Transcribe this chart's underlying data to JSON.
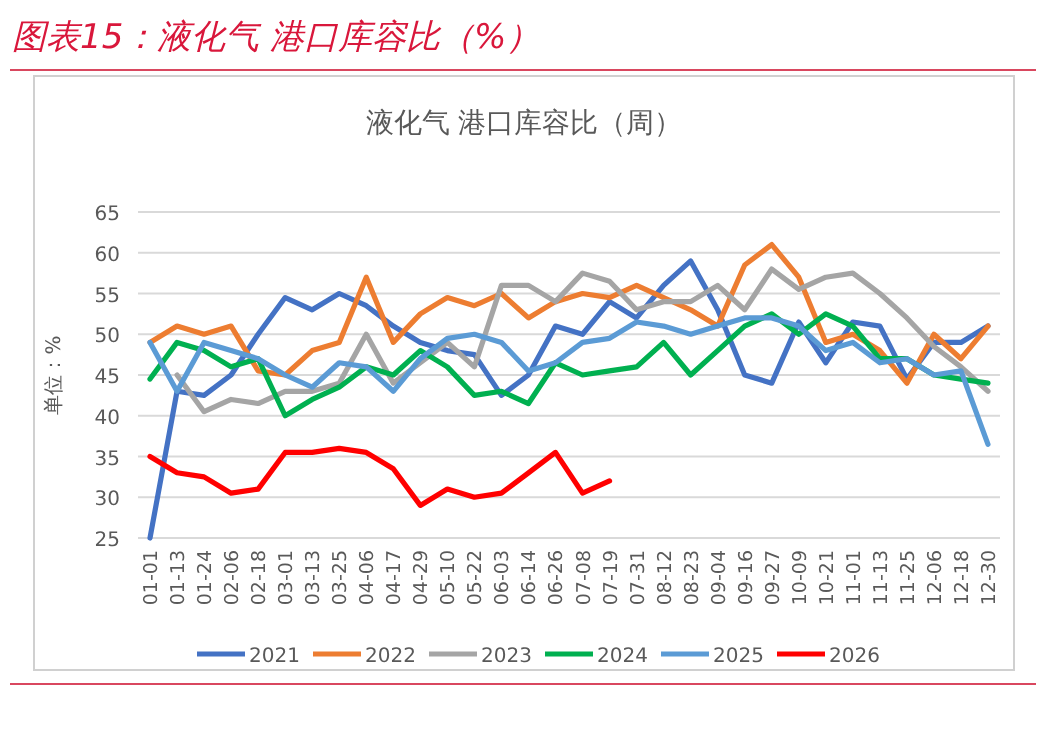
{
  "chart_data": {
    "type": "line",
    "title": "图表15：液化气 港口库容比（%）",
    "subtitle": "液化气 港口库容比（周）",
    "ylabel": "单位：%",
    "categories": [
      "01-01",
      "01-13",
      "01-24",
      "02-06",
      "02-18",
      "03-01",
      "03-13",
      "03-25",
      "04-06",
      "04-17",
      "04-29",
      "05-10",
      "05-22",
      "06-03",
      "06-14",
      "06-26",
      "07-08",
      "07-19",
      "07-31",
      "08-12",
      "08-23",
      "09-04",
      "09-16",
      "09-27",
      "10-09",
      "10-21",
      "11-01",
      "11-13",
      "11-25",
      "12-06",
      "12-18",
      "12-30"
    ],
    "series": [
      {
        "name": "2021",
        "color": "#4472c4",
        "values": [
          25,
          43,
          42.5,
          45,
          50,
          54.5,
          53,
          55,
          53.5,
          51,
          49,
          48,
          47.5,
          42.5,
          45,
          51,
          50,
          54,
          52,
          56,
          59,
          53,
          45,
          44,
          51.5,
          46.5,
          51.5,
          51,
          44.5,
          49,
          49,
          51
        ]
      },
      {
        "name": "2022",
        "color": "#ed7d31",
        "values": [
          49,
          51,
          50,
          51,
          45.5,
          45,
          48,
          49,
          57,
          49,
          52.5,
          54.5,
          53.5,
          55,
          52,
          54,
          55,
          54.5,
          56,
          54.5,
          53,
          51,
          58.5,
          61,
          57,
          49,
          50,
          48,
          44,
          50,
          47,
          51
        ]
      },
      {
        "name": "2023",
        "color": "#a5a5a5",
        "values": [
          null,
          45,
          40.5,
          42,
          41.5,
          43,
          43,
          44,
          50,
          44,
          46.5,
          49,
          46,
          56,
          56,
          54,
          57.5,
          56.5,
          53,
          54,
          54,
          56,
          53,
          58,
          55.5,
          57,
          57.5,
          55,
          52,
          48.5,
          46,
          43
        ]
      },
      {
        "name": "2024",
        "color": "#00b050",
        "values": [
          44.5,
          49,
          48,
          46,
          47,
          40,
          42,
          43.5,
          46,
          45,
          48,
          46,
          42.5,
          43,
          41.5,
          46.5,
          45,
          45.5,
          46,
          49,
          45,
          48,
          51,
          52.5,
          50,
          52.5,
          51,
          47,
          47,
          45,
          44.5,
          44
        ]
      },
      {
        "name": "2025",
        "color": "#5b9bd5",
        "values": [
          49,
          43,
          49,
          48,
          47,
          45,
          43.5,
          46.5,
          46,
          43,
          47,
          49.5,
          50,
          49,
          45.5,
          46.5,
          49,
          49.5,
          51.5,
          51,
          50,
          51,
          52,
          52,
          51,
          48,
          49,
          46.5,
          47,
          45,
          45.5,
          36.5
        ]
      },
      {
        "name": "2026",
        "color": "#ff0000",
        "values": [
          35,
          33,
          32.5,
          30.5,
          31,
          35.5,
          35.5,
          36,
          35.5,
          33.5,
          29,
          31,
          30,
          30.5,
          33,
          35.5,
          30.5,
          32,
          null,
          null,
          null,
          null,
          null,
          null,
          null,
          null,
          null,
          null,
          null,
          null,
          null,
          null
        ]
      }
    ],
    "ylim": [
      25,
      65
    ],
    "yticks": [
      25,
      30,
      35,
      40,
      45,
      50,
      55,
      60,
      65
    ],
    "grid": "y",
    "legend": "bottom"
  }
}
